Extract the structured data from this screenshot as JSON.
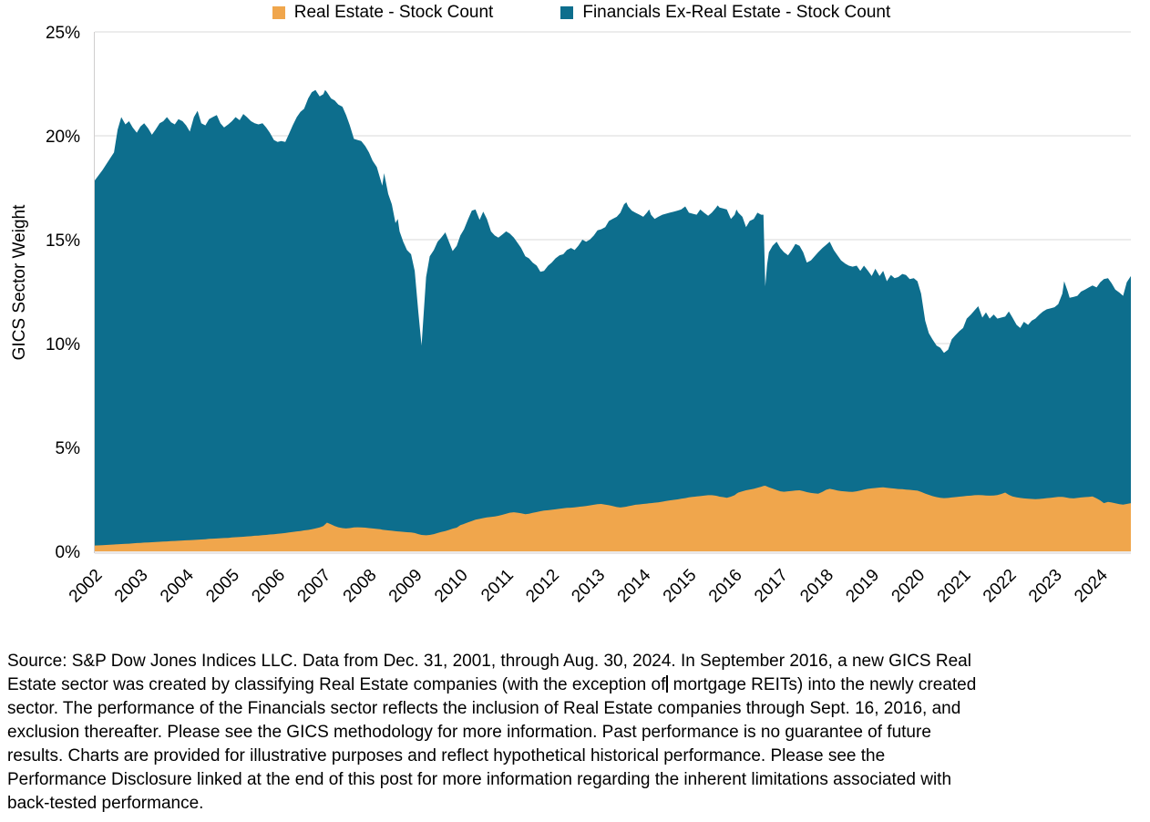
{
  "colors": {
    "real_estate": "#F0A64C",
    "financials": "#0D6E8D",
    "grid": "#d9d9d9",
    "axis": "#d0cece",
    "text": "#000000",
    "background": "#ffffff"
  },
  "chart_data": {
    "type": "area",
    "stacked": true,
    "title": "",
    "xlabel": "",
    "ylabel": "GICS Sector Weight",
    "xlim": [
      2002,
      2024.67
    ],
    "ylim": [
      0,
      25
    ],
    "yticks": [
      0,
      5,
      10,
      15,
      20,
      25
    ],
    "ytick_suffix": "%",
    "x_tick_years": [
      2002,
      2003,
      2004,
      2005,
      2006,
      2007,
      2008,
      2009,
      2010,
      2011,
      2012,
      2013,
      2014,
      2015,
      2016,
      2017,
      2018,
      2019,
      2020,
      2021,
      2022,
      2023,
      2024
    ],
    "grid": true,
    "legend_position": "top-center",
    "series": [
      {
        "name": "Real Estate - Stock Count",
        "color": "#F0A64C"
      },
      {
        "name": "Financials Ex-Real Estate - Stock Count",
        "color": "#0D6E8D"
      }
    ],
    "points_format": [
      "year_decimal",
      "real_estate_pct",
      "financials_ex_real_estate_pct"
    ],
    "points": [
      [
        2002.0,
        0.28,
        17.57
      ],
      [
        2002.17,
        0.3,
        18.05
      ],
      [
        2002.33,
        0.32,
        18.58
      ],
      [
        2002.42,
        0.33,
        18.87
      ],
      [
        2002.5,
        0.34,
        19.96
      ],
      [
        2002.58,
        0.35,
        20.55
      ],
      [
        2002.67,
        0.36,
        20.19
      ],
      [
        2002.75,
        0.37,
        20.33
      ],
      [
        2002.83,
        0.38,
        20.02
      ],
      [
        2002.92,
        0.4,
        19.75
      ],
      [
        2003.0,
        0.41,
        20.04
      ],
      [
        2003.08,
        0.42,
        20.18
      ],
      [
        2003.17,
        0.43,
        19.92
      ],
      [
        2003.25,
        0.44,
        19.61
      ],
      [
        2003.33,
        0.45,
        19.85
      ],
      [
        2003.42,
        0.46,
        20.14
      ],
      [
        2003.5,
        0.47,
        20.23
      ],
      [
        2003.58,
        0.48,
        20.42
      ],
      [
        2003.67,
        0.49,
        20.16
      ],
      [
        2003.75,
        0.5,
        20.05
      ],
      [
        2003.83,
        0.51,
        20.29
      ],
      [
        2003.92,
        0.52,
        20.18
      ],
      [
        2004.0,
        0.53,
        19.97
      ],
      [
        2004.08,
        0.54,
        19.66
      ],
      [
        2004.17,
        0.55,
        20.35
      ],
      [
        2004.25,
        0.56,
        20.64
      ],
      [
        2004.33,
        0.57,
        20.03
      ],
      [
        2004.42,
        0.58,
        19.92
      ],
      [
        2004.5,
        0.6,
        20.2
      ],
      [
        2004.58,
        0.61,
        20.29
      ],
      [
        2004.67,
        0.62,
        20.38
      ],
      [
        2004.75,
        0.63,
        19.97
      ],
      [
        2004.83,
        0.64,
        19.76
      ],
      [
        2004.92,
        0.65,
        19.9
      ],
      [
        2005.0,
        0.67,
        20.03
      ],
      [
        2005.08,
        0.68,
        20.22
      ],
      [
        2005.17,
        0.69,
        20.06
      ],
      [
        2005.25,
        0.7,
        20.35
      ],
      [
        2005.33,
        0.72,
        20.18
      ],
      [
        2005.42,
        0.73,
        19.97
      ],
      [
        2005.5,
        0.75,
        19.85
      ],
      [
        2005.58,
        0.76,
        19.79
      ],
      [
        2005.67,
        0.78,
        19.82
      ],
      [
        2005.75,
        0.79,
        19.61
      ],
      [
        2005.83,
        0.81,
        19.34
      ],
      [
        2005.92,
        0.82,
        18.98
      ],
      [
        2006.0,
        0.84,
        18.86
      ],
      [
        2006.08,
        0.86,
        18.89
      ],
      [
        2006.17,
        0.88,
        18.82
      ],
      [
        2006.25,
        0.91,
        19.19
      ],
      [
        2006.33,
        0.93,
        19.57
      ],
      [
        2006.42,
        0.96,
        19.94
      ],
      [
        2006.5,
        0.98,
        20.17
      ],
      [
        2006.58,
        1.01,
        20.29
      ],
      [
        2006.67,
        1.03,
        20.77
      ],
      [
        2006.75,
        1.06,
        21.04
      ],
      [
        2006.83,
        1.1,
        21.1
      ],
      [
        2006.92,
        1.15,
        20.75
      ],
      [
        2007.0,
        1.22,
        20.78
      ],
      [
        2007.04,
        1.3,
        20.9
      ],
      [
        2007.08,
        1.38,
        20.72
      ],
      [
        2007.17,
        1.3,
        20.5
      ],
      [
        2007.25,
        1.22,
        20.48
      ],
      [
        2007.33,
        1.16,
        20.34
      ],
      [
        2007.42,
        1.12,
        20.28
      ],
      [
        2007.5,
        1.1,
        19.9
      ],
      [
        2007.58,
        1.12,
        19.38
      ],
      [
        2007.67,
        1.15,
        18.7
      ],
      [
        2007.75,
        1.16,
        18.64
      ],
      [
        2007.83,
        1.15,
        18.6
      ],
      [
        2007.92,
        1.14,
        18.36
      ],
      [
        2008.0,
        1.12,
        18.08
      ],
      [
        2008.08,
        1.1,
        17.7
      ],
      [
        2008.17,
        1.08,
        17.42
      ],
      [
        2008.25,
        1.06,
        16.84
      ],
      [
        2008.29,
        1.04,
        16.56
      ],
      [
        2008.33,
        1.03,
        17.17
      ],
      [
        2008.42,
        1.01,
        16.19
      ],
      [
        2008.5,
        0.99,
        15.71
      ],
      [
        2008.58,
        0.97,
        14.83
      ],
      [
        2008.63,
        0.96,
        15.04
      ],
      [
        2008.67,
        0.95,
        14.45
      ],
      [
        2008.75,
        0.94,
        13.96
      ],
      [
        2008.83,
        0.92,
        13.58
      ],
      [
        2008.92,
        0.91,
        13.39
      ],
      [
        2009.0,
        0.88,
        12.62
      ],
      [
        2009.08,
        0.83,
        10.67
      ],
      [
        2009.15,
        0.79,
        9.11
      ],
      [
        2009.25,
        0.77,
        12.43
      ],
      [
        2009.33,
        0.79,
        13.41
      ],
      [
        2009.42,
        0.83,
        13.67
      ],
      [
        2009.5,
        0.88,
        14.02
      ],
      [
        2009.58,
        0.93,
        14.17
      ],
      [
        2009.67,
        0.98,
        14.37
      ],
      [
        2009.75,
        1.03,
        13.87
      ],
      [
        2009.83,
        1.09,
        13.36
      ],
      [
        2009.92,
        1.14,
        13.56
      ],
      [
        2010.0,
        1.26,
        13.94
      ],
      [
        2010.08,
        1.32,
        14.18
      ],
      [
        2010.17,
        1.4,
        14.6
      ],
      [
        2010.25,
        1.46,
        14.94
      ],
      [
        2010.33,
        1.52,
        14.93
      ],
      [
        2010.42,
        1.56,
        14.39
      ],
      [
        2010.5,
        1.6,
        14.75
      ],
      [
        2010.58,
        1.63,
        14.37
      ],
      [
        2010.67,
        1.66,
        13.74
      ],
      [
        2010.75,
        1.68,
        13.52
      ],
      [
        2010.83,
        1.71,
        13.39
      ],
      [
        2010.92,
        1.76,
        13.49
      ],
      [
        2011.0,
        1.81,
        13.59
      ],
      [
        2011.08,
        1.86,
        13.44
      ],
      [
        2011.17,
        1.88,
        13.22
      ],
      [
        2011.25,
        1.86,
        12.99
      ],
      [
        2011.33,
        1.83,
        12.77
      ],
      [
        2011.42,
        1.79,
        12.41
      ],
      [
        2011.5,
        1.81,
        12.29
      ],
      [
        2011.58,
        1.85,
        12.05
      ],
      [
        2011.67,
        1.89,
        11.86
      ],
      [
        2011.75,
        1.93,
        11.52
      ],
      [
        2011.83,
        1.96,
        11.54
      ],
      [
        2011.92,
        1.98,
        11.77
      ],
      [
        2012.0,
        2.0,
        11.9
      ],
      [
        2012.08,
        2.02,
        12.08
      ],
      [
        2012.17,
        2.05,
        12.2
      ],
      [
        2012.25,
        2.07,
        12.23
      ],
      [
        2012.33,
        2.09,
        12.41
      ],
      [
        2012.42,
        2.1,
        12.5
      ],
      [
        2012.5,
        2.12,
        12.38
      ],
      [
        2012.58,
        2.14,
        12.56
      ],
      [
        2012.67,
        2.16,
        12.84
      ],
      [
        2012.75,
        2.18,
        12.72
      ],
      [
        2012.83,
        2.21,
        12.79
      ],
      [
        2012.92,
        2.24,
        12.96
      ],
      [
        2013.0,
        2.27,
        13.18
      ],
      [
        2013.08,
        2.28,
        13.22
      ],
      [
        2013.17,
        2.25,
        13.35
      ],
      [
        2013.25,
        2.22,
        13.68
      ],
      [
        2013.33,
        2.18,
        13.82
      ],
      [
        2013.42,
        2.13,
        13.97
      ],
      [
        2013.5,
        2.11,
        14.19
      ],
      [
        2013.58,
        2.13,
        14.57
      ],
      [
        2013.63,
        2.15,
        14.65
      ],
      [
        2013.67,
        2.17,
        14.43
      ],
      [
        2013.75,
        2.2,
        14.2
      ],
      [
        2013.83,
        2.24,
        14.06
      ],
      [
        2013.92,
        2.26,
        13.94
      ],
      [
        2014.0,
        2.28,
        13.82
      ],
      [
        2014.08,
        2.3,
        14.0
      ],
      [
        2014.13,
        2.31,
        14.14
      ],
      [
        2014.17,
        2.32,
        13.88
      ],
      [
        2014.25,
        2.34,
        13.66
      ],
      [
        2014.33,
        2.36,
        13.74
      ],
      [
        2014.42,
        2.39,
        13.81
      ],
      [
        2014.5,
        2.42,
        13.83
      ],
      [
        2014.58,
        2.45,
        13.85
      ],
      [
        2014.67,
        2.48,
        13.87
      ],
      [
        2014.75,
        2.5,
        13.9
      ],
      [
        2014.83,
        2.53,
        13.92
      ],
      [
        2014.92,
        2.56,
        14.04
      ],
      [
        2015.0,
        2.6,
        13.7
      ],
      [
        2015.08,
        2.62,
        13.63
      ],
      [
        2015.17,
        2.64,
        13.56
      ],
      [
        2015.25,
        2.66,
        13.79
      ],
      [
        2015.33,
        2.68,
        13.62
      ],
      [
        2015.42,
        2.7,
        13.45
      ],
      [
        2015.5,
        2.7,
        13.6
      ],
      [
        2015.58,
        2.68,
        13.82
      ],
      [
        2015.63,
        2.66,
        13.99
      ],
      [
        2015.67,
        2.63,
        13.92
      ],
      [
        2015.75,
        2.61,
        13.89
      ],
      [
        2015.83,
        2.58,
        13.87
      ],
      [
        2015.92,
        2.63,
        13.37
      ],
      [
        2016.0,
        2.7,
        13.5
      ],
      [
        2016.04,
        2.77,
        13.68
      ],
      [
        2016.08,
        2.83,
        13.47
      ],
      [
        2016.17,
        2.89,
        13.21
      ],
      [
        2016.25,
        2.94,
        12.66
      ],
      [
        2016.33,
        2.97,
        12.93
      ],
      [
        2016.42,
        3.01,
        12.99
      ],
      [
        2016.5,
        3.06,
        13.24
      ],
      [
        2016.58,
        3.11,
        13.09
      ],
      [
        2016.63,
        3.15,
        13.05
      ],
      [
        2016.67,
        3.16,
        9.59
      ],
      [
        2016.71,
        3.12,
        10.68
      ],
      [
        2016.75,
        3.08,
        11.32
      ],
      [
        2016.83,
        3.02,
        11.68
      ],
      [
        2016.92,
        2.95,
        11.95
      ],
      [
        2017.0,
        2.89,
        11.71
      ],
      [
        2017.08,
        2.87,
        11.53
      ],
      [
        2017.17,
        2.89,
        11.36
      ],
      [
        2017.25,
        2.91,
        11.59
      ],
      [
        2017.33,
        2.93,
        11.87
      ],
      [
        2017.42,
        2.94,
        11.76
      ],
      [
        2017.5,
        2.9,
        11.5
      ],
      [
        2017.58,
        2.85,
        11.05
      ],
      [
        2017.67,
        2.81,
        11.19
      ],
      [
        2017.75,
        2.79,
        11.41
      ],
      [
        2017.83,
        2.77,
        11.63
      ],
      [
        2017.92,
        2.86,
        11.74
      ],
      [
        2018.0,
        2.96,
        11.79
      ],
      [
        2018.08,
        3.01,
        11.89
      ],
      [
        2018.17,
        2.97,
        11.53
      ],
      [
        2018.25,
        2.93,
        11.32
      ],
      [
        2018.33,
        2.9,
        11.1
      ],
      [
        2018.42,
        2.88,
        10.97
      ],
      [
        2018.5,
        2.87,
        10.88
      ],
      [
        2018.58,
        2.86,
        10.84
      ],
      [
        2018.67,
        2.89,
        10.86
      ],
      [
        2018.75,
        2.93,
        10.57
      ],
      [
        2018.83,
        2.97,
        10.78
      ],
      [
        2018.92,
        3.01,
        10.49
      ],
      [
        2019.0,
        3.03,
        10.22
      ],
      [
        2019.08,
        3.05,
        10.55
      ],
      [
        2019.17,
        3.07,
        10.18
      ],
      [
        2019.25,
        3.08,
        10.42
      ],
      [
        2019.33,
        3.06,
        9.94
      ],
      [
        2019.42,
        3.04,
        10.26
      ],
      [
        2019.5,
        3.02,
        10.13
      ],
      [
        2019.58,
        3.0,
        10.2
      ],
      [
        2019.67,
        2.99,
        10.36
      ],
      [
        2019.75,
        2.97,
        10.33
      ],
      [
        2019.83,
        2.96,
        10.14
      ],
      [
        2019.92,
        2.94,
        10.21
      ],
      [
        2020.0,
        2.92,
        10.08
      ],
      [
        2020.08,
        2.86,
        9.54
      ],
      [
        2020.17,
        2.78,
        8.32
      ],
      [
        2020.25,
        2.72,
        7.78
      ],
      [
        2020.33,
        2.66,
        7.54
      ],
      [
        2020.42,
        2.61,
        7.29
      ],
      [
        2020.5,
        2.58,
        7.22
      ],
      [
        2020.58,
        2.56,
        6.99
      ],
      [
        2020.67,
        2.57,
        7.13
      ],
      [
        2020.75,
        2.59,
        7.61
      ],
      [
        2020.83,
        2.61,
        7.79
      ],
      [
        2020.92,
        2.63,
        7.97
      ],
      [
        2021.0,
        2.65,
        8.1
      ],
      [
        2021.08,
        2.67,
        8.53
      ],
      [
        2021.17,
        2.68,
        8.72
      ],
      [
        2021.25,
        2.7,
        8.9
      ],
      [
        2021.33,
        2.71,
        9.09
      ],
      [
        2021.42,
        2.7,
        8.55
      ],
      [
        2021.5,
        2.69,
        8.81
      ],
      [
        2021.58,
        2.68,
        8.52
      ],
      [
        2021.67,
        2.69,
        8.71
      ],
      [
        2021.75,
        2.71,
        8.49
      ],
      [
        2021.83,
        2.76,
        8.49
      ],
      [
        2021.92,
        2.83,
        8.47
      ],
      [
        2022.0,
        2.72,
        8.83
      ],
      [
        2022.08,
        2.64,
        8.61
      ],
      [
        2022.17,
        2.6,
        8.3
      ],
      [
        2022.25,
        2.57,
        8.18
      ],
      [
        2022.33,
        2.55,
        8.5
      ],
      [
        2022.42,
        2.53,
        8.37
      ],
      [
        2022.5,
        2.52,
        8.58
      ],
      [
        2022.58,
        2.51,
        8.69
      ],
      [
        2022.67,
        2.52,
        8.88
      ],
      [
        2022.75,
        2.54,
        9.01
      ],
      [
        2022.83,
        2.56,
        9.09
      ],
      [
        2022.92,
        2.58,
        9.12
      ],
      [
        2023.0,
        2.6,
        9.15
      ],
      [
        2023.08,
        2.62,
        9.28
      ],
      [
        2023.17,
        2.62,
        9.78
      ],
      [
        2023.21,
        2.61,
        10.39
      ],
      [
        2023.29,
        2.58,
        9.92
      ],
      [
        2023.33,
        2.56,
        9.64
      ],
      [
        2023.42,
        2.55,
        9.7
      ],
      [
        2023.5,
        2.57,
        9.73
      ],
      [
        2023.58,
        2.59,
        9.91
      ],
      [
        2023.67,
        2.61,
        9.99
      ],
      [
        2023.75,
        2.62,
        10.08
      ],
      [
        2023.83,
        2.64,
        10.16
      ],
      [
        2023.92,
        2.55,
        10.15
      ],
      [
        2024.0,
        2.45,
        10.5
      ],
      [
        2024.08,
        2.32,
        10.78
      ],
      [
        2024.17,
        2.38,
        10.77
      ],
      [
        2024.25,
        2.35,
        10.55
      ],
      [
        2024.33,
        2.31,
        10.29
      ],
      [
        2024.42,
        2.27,
        10.18
      ],
      [
        2024.5,
        2.25,
        10.05
      ],
      [
        2024.58,
        2.28,
        10.67
      ],
      [
        2024.67,
        2.32,
        10.93
      ]
    ]
  },
  "footer": {
    "line1": "Source: S&P Dow Jones Indices LLC. Data from Dec. 31, 2001, through Aug. 30, 2024. In September 2016, a new GICS Real",
    "line2_before_cursor": "Estate sector was created by classifying Real Estate companies (with the exception of",
    "line2_after_cursor": " mortgage REITs) into the newly created",
    "line3": "sector. The performance of the Financials sector reflects the inclusion of Real Estate companies through Sept. 16, 2016, and",
    "line4": "exclusion thereafter. Please see the GICS methodology for more information. Past performance is no guarantee of future",
    "line5": "results. Charts are provided for illustrative purposes and reflect hypothetical historical performance. Please see the",
    "line6": "Performance Disclosure linked at the end of this post for more information regarding the inherent limitations associated with",
    "line7": "back-tested performance."
  }
}
